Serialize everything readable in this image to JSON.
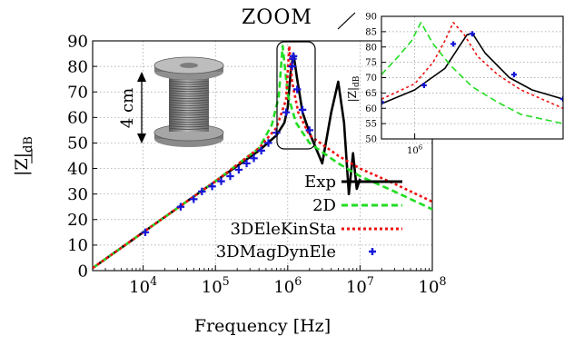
{
  "chart_data": [
    {
      "type": "line",
      "xscale": "log",
      "xlim": [
        2000,
        100000000
      ],
      "ylim": [
        0,
        90
      ],
      "xlabel": "Frequency [Hz]",
      "ylabel": "|Z|dB",
      "ylabel_main": "|Z|",
      "ylabel_sub": "dB",
      "xticks": [
        {
          "value": 10000,
          "base": "10",
          "exp": "4"
        },
        {
          "value": 100000,
          "base": "10",
          "exp": "5"
        },
        {
          "value": 1000000,
          "base": "10",
          "exp": "6"
        },
        {
          "value": 10000000,
          "base": "10",
          "exp": "7"
        },
        {
          "value": 100000000,
          "base": "10",
          "exp": "8"
        }
      ],
      "yticks": [
        "0",
        "10",
        "20",
        "30",
        "40",
        "50",
        "60",
        "70",
        "80",
        "90"
      ],
      "grid": true,
      "legend_position": "right",
      "series": [
        {
          "name": "Exp",
          "color": "#000000",
          "style": "solid",
          "x": [
            2000,
            10000,
            100000,
            400000,
            700000,
            900000,
            1000000,
            1100000,
            1200000,
            1350000,
            1600000,
            2000000,
            3000000,
            4000000,
            5000000,
            6000000,
            7000000,
            8000000,
            9000000,
            10000000
          ],
          "y": [
            1,
            15,
            35,
            47,
            53,
            58,
            64,
            78,
            85,
            75,
            62,
            54,
            42,
            62,
            74,
            58,
            30,
            46,
            32,
            36
          ]
        },
        {
          "name": "2D",
          "color": "#22dd22",
          "style": "dashed",
          "x": [
            2000,
            10000,
            100000,
            400000,
            600000,
            750000,
            850000,
            1000000,
            1300000,
            2000000,
            5000000,
            10000000,
            30000000,
            100000000
          ],
          "y": [
            1,
            15,
            35,
            48,
            57,
            68,
            88,
            69,
            58,
            50,
            42,
            37,
            31,
            24
          ]
        },
        {
          "name": "3DEleKinSta",
          "color": "#ee1111",
          "style": "dotted",
          "x": [
            2000,
            10000,
            100000,
            400000,
            700000,
            950000,
            1050000,
            1150000,
            1400000,
            2000000,
            5000000,
            10000000,
            30000000,
            100000000
          ],
          "y": [
            1,
            15,
            35,
            48,
            56,
            67,
            88,
            74,
            62,
            53,
            45,
            40,
            34,
            27
          ]
        }
      ],
      "markers": {
        "name": "3DMagDynEle",
        "color": "#1515d8",
        "x": [
          10700,
          33000,
          50000,
          65000,
          90000,
          120000,
          160000,
          210000,
          270000,
          340000,
          430000,
          540000,
          700000,
          950000,
          1150000,
          1180000,
          1200000,
          1350000,
          1600000,
          2000000
        ],
        "y": [
          15,
          25,
          28,
          31,
          33,
          35,
          37,
          39.5,
          42,
          44,
          47,
          50,
          54,
          62,
          80,
          83,
          84,
          71,
          63,
          55
        ]
      }
    },
    {
      "type": "line",
      "xscale": "log",
      "xlim": [
        900000,
        1600000
      ],
      "ylim": [
        50,
        90
      ],
      "ylabel_main": "|Z|",
      "ylabel_sub": "dB",
      "xticks": [
        {
          "value": 1000000,
          "base": "10",
          "exp": "6"
        }
      ],
      "yticks": [
        "50",
        "55",
        "60",
        "65",
        "70",
        "75",
        "80",
        "85",
        "90"
      ],
      "grid": true,
      "series": [
        {
          "name": "Exp",
          "color": "#000000",
          "style": "solid",
          "x": [
            900000,
            1000000,
            1100000,
            1150000,
            1180000,
            1200000,
            1250000,
            1350000,
            1450000,
            1600000
          ],
          "y": [
            61.5,
            66,
            73,
            80,
            84,
            84.5,
            78,
            70,
            66,
            63
          ]
        },
        {
          "name": "2D",
          "color": "#22dd22",
          "style": "dashed",
          "x": [
            900000,
            950000,
            990000,
            1020000,
            1060000,
            1120000,
            1200000,
            1300000,
            1400000,
            1600000
          ],
          "y": [
            71,
            77,
            82,
            88,
            81,
            74,
            67,
            62,
            58,
            55
          ]
        },
        {
          "name": "3DEleKinSta",
          "color": "#ee1111",
          "style": "dotted",
          "x": [
            900000,
            1000000,
            1060000,
            1100000,
            1130000,
            1170000,
            1220000,
            1300000,
            1400000,
            1600000
          ],
          "y": [
            63,
            68,
            75,
            82,
            88,
            84,
            77,
            71,
            66,
            60
          ]
        }
      ],
      "markers": {
        "name": "3DMagDynEle",
        "color": "#1515d8",
        "x": [
          900000,
          1030000,
          1130000,
          1200000,
          1370000,
          1600000
        ],
        "y": [
          62,
          67.5,
          81,
          84.3,
          71,
          63
        ]
      }
    }
  ],
  "annotations": {
    "zoom": "ZOOM",
    "dimension": "4 cm"
  }
}
